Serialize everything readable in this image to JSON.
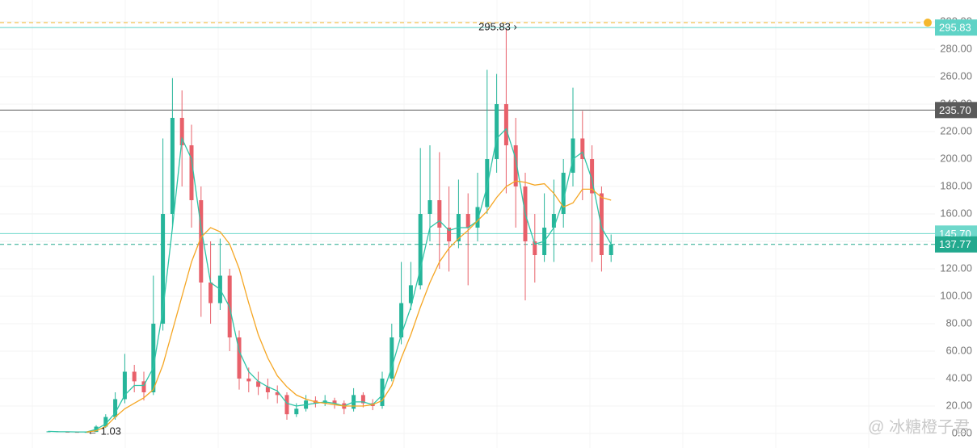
{
  "chart_data": {
    "type": "candlestick",
    "candles": [
      [
        1.4,
        1.8,
        1.2,
        1.5
      ],
      [
        1.5,
        1.6,
        1.1,
        1.2
      ],
      [
        1.2,
        1.4,
        1.05,
        1.1
      ],
      [
        1.1,
        1.3,
        1.03,
        1.05
      ],
      [
        1.05,
        1.5,
        1.04,
        1.1
      ],
      [
        1.1,
        6,
        1.1,
        5
      ],
      [
        5,
        14,
        4,
        12
      ],
      [
        12,
        30,
        10,
        25
      ],
      [
        25,
        58,
        22,
        45
      ],
      [
        45,
        50,
        30,
        38
      ],
      [
        38,
        45,
        24,
        30
      ],
      [
        30,
        115,
        28,
        80
      ],
      [
        80,
        215,
        75,
        160
      ],
      [
        160,
        259,
        150,
        230
      ],
      [
        230,
        250,
        180,
        210
      ],
      [
        210,
        225,
        150,
        170
      ],
      [
        170,
        180,
        85,
        110
      ],
      [
        110,
        140,
        80,
        95
      ],
      [
        95,
        142,
        90,
        115
      ],
      [
        115,
        120,
        60,
        70
      ],
      [
        70,
        75,
        32,
        40
      ],
      [
        40,
        48,
        30,
        38
      ],
      [
        38,
        45,
        28,
        34
      ],
      [
        34,
        40,
        25,
        30
      ],
      [
        30,
        35,
        22,
        28
      ],
      [
        28,
        30,
        10,
        14
      ],
      [
        14,
        22,
        12,
        18
      ],
      [
        18,
        28,
        16,
        24
      ],
      [
        24,
        27,
        19,
        22
      ],
      [
        22,
        28,
        20,
        24
      ],
      [
        24,
        26,
        18,
        22
      ],
      [
        22,
        24,
        14,
        18
      ],
      [
        18,
        33,
        16,
        28
      ],
      [
        28,
        30,
        19,
        22
      ],
      [
        22,
        25,
        17,
        20
      ],
      [
        20,
        45,
        18,
        40
      ],
      [
        40,
        80,
        38,
        70
      ],
      [
        70,
        125,
        65,
        95
      ],
      [
        95,
        125,
        90,
        108
      ],
      [
        108,
        208,
        105,
        160
      ],
      [
        160,
        210,
        140,
        170
      ],
      [
        170,
        205,
        120,
        150
      ],
      [
        150,
        180,
        118,
        140
      ],
      [
        140,
        185,
        135,
        160
      ],
      [
        160,
        175,
        108,
        150
      ],
      [
        150,
        190,
        140,
        165
      ],
      [
        165,
        265,
        160,
        200
      ],
      [
        200,
        262,
        190,
        240
      ],
      [
        240,
        295.83,
        175,
        210
      ],
      [
        210,
        230,
        150,
        180
      ],
      [
        180,
        190,
        97,
        140
      ],
      [
        140,
        160,
        110,
        130
      ],
      [
        130,
        175,
        125,
        150
      ],
      [
        150,
        185,
        125,
        160
      ],
      [
        160,
        200,
        150,
        190
      ],
      [
        190,
        252,
        180,
        215
      ],
      [
        215,
        235,
        170,
        200
      ],
      [
        200,
        210,
        125,
        175
      ],
      [
        175,
        180,
        118,
        130
      ],
      [
        130,
        145,
        125,
        137.77
      ]
    ],
    "up_color": "#26b59a",
    "down_color": "#e8606a",
    "series": [
      {
        "color": "#2ec4a6",
        "values": [
          1.5,
          1.3,
          1.2,
          1.1,
          1.1,
          3,
          7,
          15,
          28,
          35,
          35,
          48,
          90,
          150,
          215,
          200,
          150,
          110,
          105,
          92,
          60,
          45,
          38,
          34,
          31,
          22,
          20,
          21,
          22,
          23,
          22,
          20,
          23,
          23,
          21,
          28,
          48,
          72,
          92,
          120,
          150,
          155,
          148,
          150,
          150,
          155,
          180,
          215,
          222,
          200,
          160,
          138,
          140,
          150,
          170,
          200,
          205,
          185,
          150,
          138
        ]
      },
      {
        "color": "#f5a623",
        "values": [
          null,
          null,
          null,
          null,
          1,
          2,
          5,
          12,
          18,
          22,
          26,
          32,
          50,
          75,
          100,
          125,
          143,
          150,
          147,
          138,
          120,
          95,
          72,
          55,
          42,
          34,
          28,
          25,
          23,
          22,
          21,
          20,
          20,
          20,
          21,
          24,
          35,
          55,
          72,
          92,
          110,
          125,
          135,
          142,
          148,
          155,
          162,
          172,
          180,
          184,
          183,
          181,
          182,
          175,
          165,
          168,
          178,
          178,
          172,
          170
        ]
      }
    ],
    "ylim": [
      -10.6,
      315.9
    ],
    "yticks": [
      {
        "value": 0,
        "label": "0.00"
      },
      {
        "value": 20,
        "label": "20.00"
      },
      {
        "value": 40,
        "label": "40.00"
      },
      {
        "value": 60,
        "label": "60.00"
      },
      {
        "value": 80,
        "label": "80.00"
      },
      {
        "value": 100,
        "label": "100.00"
      },
      {
        "value": 120,
        "label": "120.00"
      },
      {
        "value": 140,
        "label": "140.00"
      },
      {
        "value": 160,
        "label": "160.00"
      },
      {
        "value": 180,
        "label": "180.00"
      },
      {
        "value": 200,
        "label": "200.00"
      },
      {
        "value": 220,
        "label": "220.00"
      },
      {
        "value": 240,
        "label": "240.00"
      },
      {
        "value": 260,
        "label": "260.00"
      },
      {
        "value": 280,
        "label": "280.00"
      },
      {
        "value": 300,
        "label": "300.00"
      }
    ],
    "grid": true,
    "price_lines": [
      {
        "value": 299.4,
        "color": "#f5b82e",
        "dashed": true
      },
      {
        "value": 295.83,
        "label": "295.83",
        "color": "#5fd3c6",
        "dashed": false
      },
      {
        "value": 235.7,
        "label": "235.70",
        "color": "#5a5a5a",
        "dashed": false
      },
      {
        "value": 145.7,
        "label": "145.70",
        "color": "#6fd8cb",
        "dashed": false
      },
      {
        "value": 137.77,
        "label": "137.77",
        "color": "#22a98e",
        "dashed": true
      }
    ],
    "annotations": [
      "295.83 ›",
      "← 1.03"
    ],
    "watermark": "@ 冰糖橙子君"
  }
}
